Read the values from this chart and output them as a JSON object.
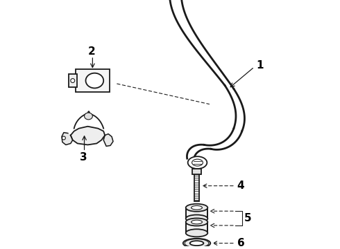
{
  "bg_color": "#ffffff",
  "line_color": "#1a1a1a",
  "label_color": "#000000",
  "figw": 4.9,
  "figh": 3.6,
  "dpi": 100
}
